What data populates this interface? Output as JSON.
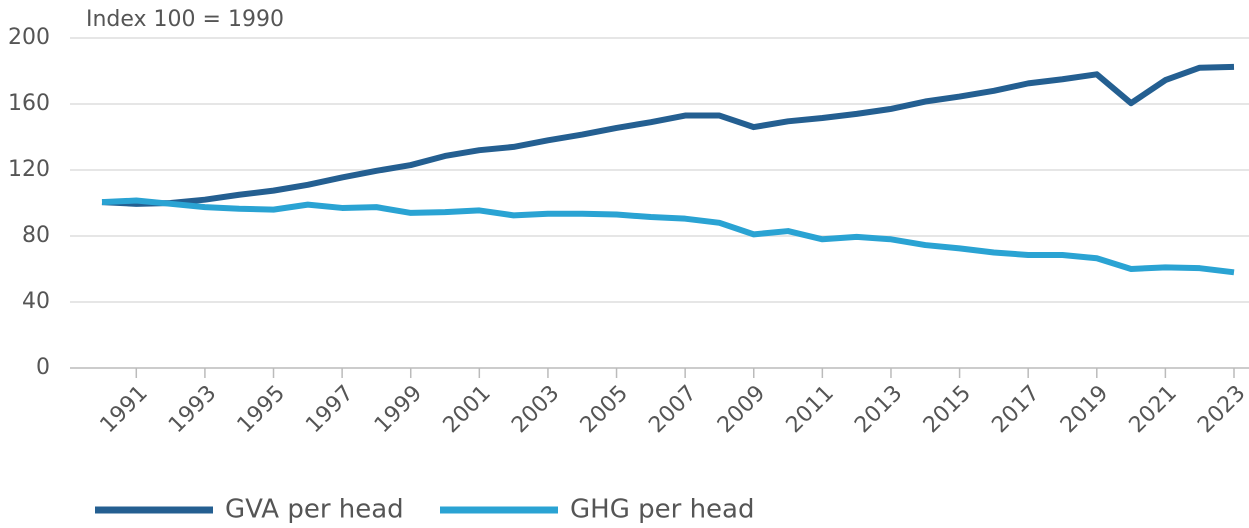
{
  "chart_data": {
    "type": "line",
    "y_label": "Index 100 = 1990",
    "x": [
      1990,
      1991,
      1992,
      1993,
      1994,
      1995,
      1996,
      1997,
      1998,
      1999,
      2000,
      2001,
      2002,
      2003,
      2004,
      2005,
      2006,
      2007,
      2008,
      2009,
      2010,
      2011,
      2012,
      2013,
      2014,
      2015,
      2016,
      2017,
      2018,
      2019,
      2020,
      2021,
      2022,
      2023
    ],
    "series": [
      {
        "name": "GVA per head",
        "color": "#245f91",
        "values": [
          100.5,
          99.5,
          100,
          102,
          105,
          107.5,
          111,
          115.5,
          119.5,
          123,
          128.5,
          132,
          134,
          138,
          141.5,
          145.5,
          149,
          153,
          153,
          146,
          149.5,
          151.5,
          154,
          157,
          161.5,
          164.5,
          168,
          172.5,
          175,
          178,
          160.5,
          174.5,
          182,
          182.5
        ]
      },
      {
        "name": "GHG per head",
        "color": "#2aa3d3",
        "values": [
          100.5,
          101.5,
          99.5,
          97.5,
          96.5,
          96,
          99,
          97,
          97.5,
          94,
          94.5,
          95.5,
          92.5,
          93.5,
          93.5,
          93,
          91.5,
          90.5,
          88,
          81,
          83,
          78,
          79.5,
          78,
          74.5,
          72.5,
          70,
          68.5,
          68.5,
          66.5,
          60,
          61,
          60.5,
          58
        ]
      }
    ],
    "xlim": [
      1990,
      2023
    ],
    "xticks": [
      1991,
      1993,
      1995,
      1997,
      1999,
      2001,
      2003,
      2005,
      2007,
      2009,
      2011,
      2013,
      2015,
      2017,
      2019,
      2021,
      2023
    ],
    "ylim": [
      0,
      200
    ],
    "yticks": [
      0,
      40,
      80,
      120,
      160,
      200
    ],
    "grid": true,
    "legend": "bottom"
  }
}
